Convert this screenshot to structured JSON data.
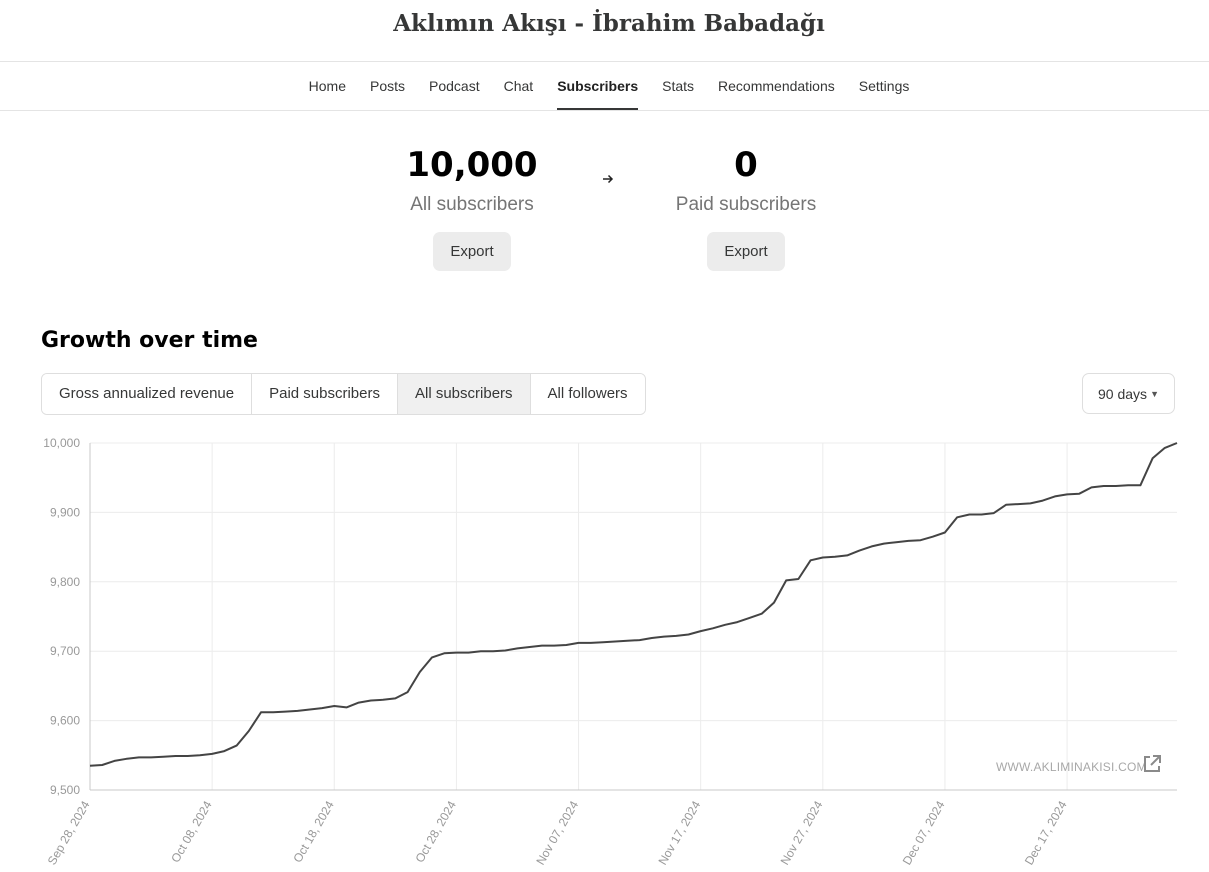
{
  "site": {
    "title": "Aklımın Akışı - İbrahim Babadağı"
  },
  "nav": {
    "items": [
      "Home",
      "Posts",
      "Podcast",
      "Chat",
      "Subscribers",
      "Stats",
      "Recommendations",
      "Settings"
    ],
    "active": "Subscribers"
  },
  "stats": {
    "all": {
      "value": "10,000",
      "label": "All subscribers",
      "export_label": "Export"
    },
    "paid": {
      "value": "0",
      "label": "Paid subscribers",
      "export_label": "Export"
    },
    "arrow_icon": "arrow-right-icon"
  },
  "growth": {
    "title": "Growth over time",
    "tabs": [
      "Gross annualized revenue",
      "Paid subscribers",
      "All subscribers",
      "All followers"
    ],
    "active_tab": "All subscribers",
    "range": "90 days"
  },
  "chart_data": {
    "type": "line",
    "title": "",
    "xlabel": "",
    "ylabel": "",
    "ylim": [
      9500,
      10000
    ],
    "yticks": [
      9500,
      9600,
      9700,
      9800,
      9900,
      10000
    ],
    "ytick_labels": [
      "9,500",
      "9,600",
      "9,700",
      "9,800",
      "9,900",
      "10,000"
    ],
    "xticks": [
      "2024-09-28",
      "2024-10-08",
      "2024-10-18",
      "2024-10-28",
      "2024-11-07",
      "2024-11-17",
      "2024-11-27",
      "2024-12-07",
      "2024-12-17"
    ],
    "xtick_labels": [
      "Sep 28, 2024",
      "Oct 08, 2024",
      "Oct 18, 2024",
      "Oct 28, 2024",
      "Nov 07, 2024",
      "Nov 17, 2024",
      "Nov 27, 2024",
      "Dec 07, 2024",
      "Dec 17, 2024"
    ],
    "xlim": [
      "2024-09-28",
      "2024-12-26"
    ],
    "grid": true,
    "line_color": "#444444",
    "series": [
      {
        "x": [
          "2024-09-28",
          "2024-09-29",
          "2024-09-30",
          "2024-10-01",
          "2024-10-02",
          "2024-10-03",
          "2024-10-04",
          "2024-10-05",
          "2024-10-06",
          "2024-10-07",
          "2024-10-08",
          "2024-10-09",
          "2024-10-10",
          "2024-10-11",
          "2024-10-12",
          "2024-10-13",
          "2024-10-14",
          "2024-10-15",
          "2024-10-16",
          "2024-10-17",
          "2024-10-18",
          "2024-10-19",
          "2024-10-20",
          "2024-10-21",
          "2024-10-22",
          "2024-10-23",
          "2024-10-24",
          "2024-10-25",
          "2024-10-26",
          "2024-10-27",
          "2024-10-28",
          "2024-10-29",
          "2024-10-30",
          "2024-10-31",
          "2024-11-01",
          "2024-11-02",
          "2024-11-03",
          "2024-11-04",
          "2024-11-05",
          "2024-11-06",
          "2024-11-07",
          "2024-11-08",
          "2024-11-09",
          "2024-11-10",
          "2024-11-11",
          "2024-11-12",
          "2024-11-13",
          "2024-11-14",
          "2024-11-15",
          "2024-11-16",
          "2024-11-17",
          "2024-11-18",
          "2024-11-19",
          "2024-11-20",
          "2024-11-21",
          "2024-11-22",
          "2024-11-23",
          "2024-11-24",
          "2024-11-25",
          "2024-11-26",
          "2024-11-27",
          "2024-11-28",
          "2024-11-29",
          "2024-11-30",
          "2024-12-01",
          "2024-12-02",
          "2024-12-03",
          "2024-12-04",
          "2024-12-05",
          "2024-12-06",
          "2024-12-07",
          "2024-12-08",
          "2024-12-09",
          "2024-12-10",
          "2024-12-11",
          "2024-12-12",
          "2024-12-13",
          "2024-12-14",
          "2024-12-15",
          "2024-12-16",
          "2024-12-17",
          "2024-12-18",
          "2024-12-19",
          "2024-12-20",
          "2024-12-21",
          "2024-12-22",
          "2024-12-23",
          "2024-12-24",
          "2024-12-25",
          "2024-12-26"
        ],
        "values": [
          9535,
          9536,
          9542,
          9545,
          9547,
          9547,
          9548,
          9549,
          9549,
          9550,
          9552,
          9556,
          9564,
          9585,
          9612,
          9612,
          9613,
          9614,
          9616,
          9618,
          9621,
          9619,
          9626,
          9629,
          9630,
          9632,
          9641,
          9670,
          9691,
          9697,
          9698,
          9698,
          9700,
          9700,
          9701,
          9704,
          9706,
          9708,
          9708,
          9709,
          9712,
          9712,
          9713,
          9714,
          9715,
          9716,
          9719,
          9721,
          9722,
          9724,
          9729,
          9733,
          9738,
          9742,
          9748,
          9754,
          9770,
          9802,
          9804,
          9831,
          9835,
          9836,
          9838,
          9845,
          9851,
          9855,
          9857,
          9859,
          9860,
          9865,
          9871,
          9893,
          9897,
          9897,
          9899,
          9911,
          9912,
          9913,
          9917,
          9923,
          9926,
          9927,
          9936,
          9938,
          9938,
          9939,
          9939,
          9978,
          9993,
          10000
        ]
      }
    ]
  },
  "watermark": {
    "text": "WWW.AKLIMINAKISI.COM",
    "icon": "external-link-icon"
  }
}
